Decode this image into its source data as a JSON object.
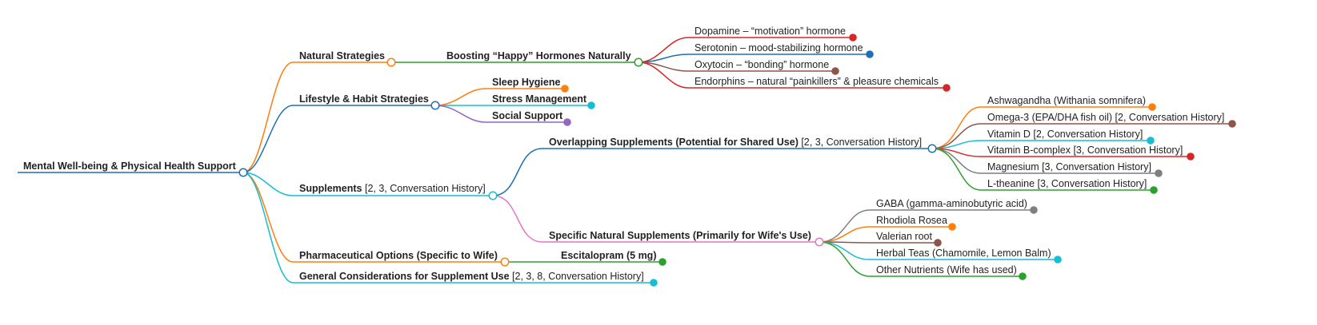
{
  "root": {
    "label": "Mental Well-being & Physical Health Support",
    "color": "#1f6fb4"
  },
  "branches": [
    {
      "key": "natural",
      "label": "Natural Strategies",
      "color": "#ff7f0e"
    },
    {
      "key": "lifestyle",
      "label": "Lifestyle & Habit Strategies",
      "color": "#1f6fb4"
    },
    {
      "key": "supplements",
      "label": "Supplements",
      "note": " [2, 3, Conversation History]",
      "color": "#17becf"
    },
    {
      "key": "pharma",
      "label": "Pharmaceutical Options (Specific to Wife)",
      "color": "#ff7f0e"
    },
    {
      "key": "general",
      "label": "General Considerations for Supplement Use",
      "note": " [2, 3, 8, Conversation History]",
      "color": "#17becf"
    }
  ],
  "hormones": {
    "label": "Boosting “Happy” Hormones Naturally",
    "color": "#2ca02c",
    "items": [
      {
        "label": "Dopamine – “motivation” hormone",
        "color": "#d62728"
      },
      {
        "label": "Serotonin – mood-stabilizing hormone",
        "color": "#1f6fb4"
      },
      {
        "label": "Oxytocin – “bonding” hormone",
        "color": "#8c564b"
      },
      {
        "label": "Endorphins – natural “painkillers” & pleasure chemicals",
        "color": "#d62728"
      }
    ]
  },
  "lifestyle_items": [
    {
      "label": "Sleep Hygiene",
      "color": "#ff7f0e"
    },
    {
      "label": "Stress Management",
      "color": "#17becf"
    },
    {
      "label": "Social Support",
      "color": "#9467bd"
    }
  ],
  "overlapping": {
    "label": "Overlapping Supplements (Potential for Shared Use)",
    "note": " [2, 3, Conversation History]",
    "color": "#1f6fb4",
    "items": [
      {
        "label": "Ashwagandha (Withania somnifera)",
        "color": "#ff7f0e"
      },
      {
        "label": "Omega-3 (EPA/DHA fish oil) [2, Conversation History]",
        "color": "#8c564b"
      },
      {
        "label": "Vitamin D [2, Conversation History]",
        "color": "#17becf"
      },
      {
        "label": "Vitamin B-complex [3, Conversation History]",
        "color": "#d62728"
      },
      {
        "label": "Magnesium [3, Conversation History]",
        "color": "#7f7f7f"
      },
      {
        "label": "L-theanine [3, Conversation History]",
        "color": "#2ca02c"
      }
    ]
  },
  "specific": {
    "label": "Specific Natural Supplements (Primarily for Wife's Use)",
    "color": "#e377c2",
    "items": [
      {
        "label": "GABA (gamma-aminobutyric acid)",
        "color": "#7f7f7f"
      },
      {
        "label": "Rhodiola Rosea",
        "color": "#ff7f0e"
      },
      {
        "label": "Valerian root",
        "color": "#8c564b"
      },
      {
        "label": "Herbal Teas (Chamomile, Lemon Balm)",
        "color": "#17becf"
      },
      {
        "label": "Other Nutrients (Wife has used)",
        "color": "#2ca02c"
      }
    ]
  },
  "pharma_item": {
    "label": "Escitalopram (5 mg)",
    "color": "#2ca02c"
  }
}
